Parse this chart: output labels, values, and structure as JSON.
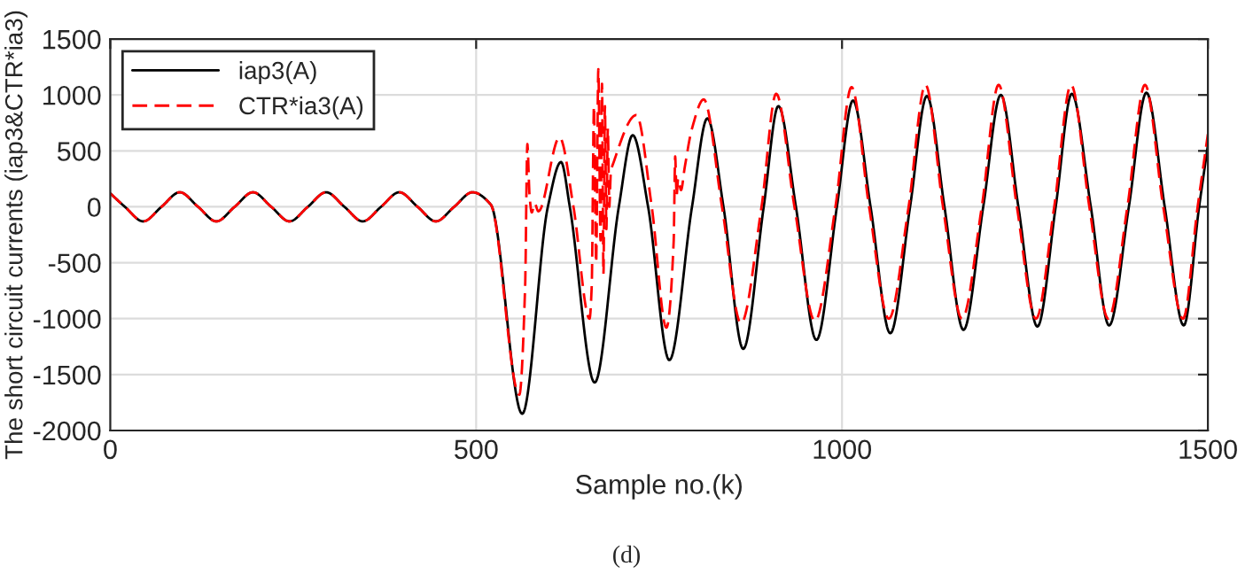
{
  "chart_data": {
    "type": "line",
    "xlabel": "Sample no.(k)",
    "ylabel": "The short circuit currents (iap3&CTR*ia3)",
    "annotations": [
      "(d)"
    ],
    "xlim": [
      0,
      1500
    ],
    "xticks": [
      0,
      500,
      1000,
      1500
    ],
    "ylim": [
      -2000,
      1500
    ],
    "yticks": [
      -2000,
      -1500,
      -1000,
      -500,
      0,
      500,
      1000,
      1500
    ],
    "grid": true,
    "legend": "top left",
    "series": [
      {
        "name": "iap3(A)",
        "color": "#000000",
        "line_style": "solid",
        "x": [
          0,
          20,
          45,
          70,
          95,
          120,
          145,
          170,
          195,
          220,
          245,
          270,
          295,
          320,
          345,
          370,
          395,
          420,
          445,
          470,
          495,
          520,
          563,
          598,
          616,
          628,
          662,
          695,
          714,
          735,
          764,
          795,
          816,
          838,
          865,
          893,
          913,
          937,
          965,
          993,
          1015,
          1039,
          1066,
          1093,
          1116,
          1140,
          1166,
          1193,
          1217,
          1241,
          1267,
          1292,
          1314,
          1340,
          1365,
          1392,
          1416,
          1441,
          1467,
          1488,
          1500
        ],
        "values": [
          120,
          0,
          -130,
          0,
          130,
          0,
          -130,
          0,
          130,
          0,
          -130,
          0,
          130,
          0,
          -130,
          0,
          130,
          0,
          -130,
          0,
          130,
          20,
          -1850,
          0,
          400,
          0,
          -1570,
          0,
          640,
          0,
          -1370,
          0,
          790,
          0,
          -1270,
          0,
          900,
          0,
          -1190,
          0,
          950,
          0,
          -1130,
          0,
          990,
          0,
          -1100,
          0,
          1000,
          0,
          -1070,
          0,
          1010,
          0,
          -1060,
          0,
          1020,
          0,
          -1060,
          0,
          550
        ]
      },
      {
        "name": "CTR*ia3(A)",
        "color": "#ff0000",
        "line_style": "dashed",
        "x": [
          0,
          20,
          45,
          70,
          95,
          120,
          145,
          170,
          195,
          220,
          245,
          270,
          295,
          320,
          345,
          370,
          395,
          420,
          445,
          470,
          495,
          520,
          559,
          567,
          570,
          573,
          576,
          580,
          585,
          614,
          633,
          655,
          658,
          661,
          664,
          667,
          670,
          672,
          674,
          676,
          678,
          680,
          682,
          684,
          688,
          719,
          740,
          760,
          770,
          772,
          774,
          776,
          780,
          785,
          795,
          811,
          836,
          862,
          890,
          910,
          935,
          963,
          991,
          1013,
          1037,
          1064,
          1091,
          1114,
          1138,
          1164,
          1191,
          1214,
          1239,
          1265,
          1290,
          1313,
          1338,
          1364,
          1390,
          1414,
          1439,
          1466,
          1486,
          1500
        ],
        "values": [
          120,
          0,
          -130,
          0,
          130,
          0,
          -130,
          0,
          130,
          0,
          -130,
          0,
          130,
          0,
          -130,
          0,
          130,
          0,
          -130,
          0,
          130,
          20,
          -1680,
          -700,
          560,
          100,
          -50,
          30,
          -40,
          620,
          0,
          -1000,
          -700,
          900,
          -500,
          1230,
          -300,
          1100,
          -600,
          900,
          -200,
          700,
          0,
          300,
          400,
          820,
          0,
          -1080,
          -300,
          450,
          100,
          250,
          150,
          350,
          700,
          960,
          0,
          -1040,
          0,
          1010,
          0,
          -1020,
          0,
          1070,
          0,
          -1000,
          0,
          1090,
          0,
          -1000,
          0,
          1090,
          0,
          -1000,
          0,
          1090,
          0,
          -1000,
          0,
          1090,
          0,
          -1000,
          0,
          650
        ]
      }
    ]
  }
}
